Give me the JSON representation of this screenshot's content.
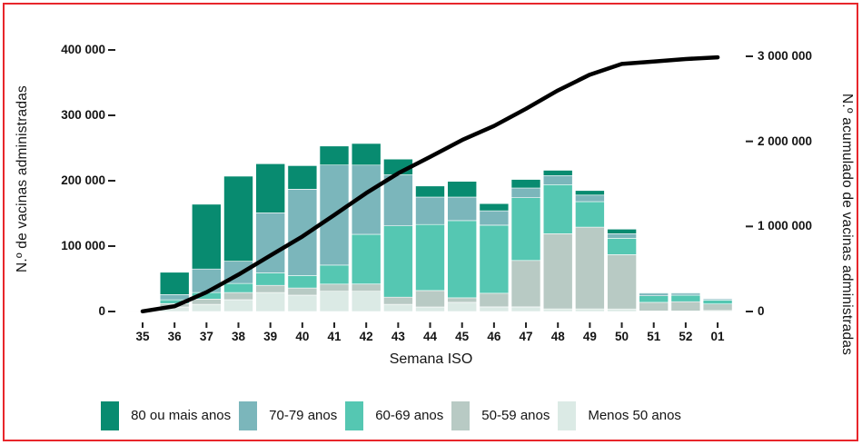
{
  "frame": {
    "border_color": "#e8262b",
    "background": "#ffffff"
  },
  "x_axis": {
    "title": "Semana ISO",
    "labels": [
      "35",
      "36",
      "37",
      "38",
      "39",
      "40",
      "41",
      "42",
      "43",
      "44",
      "45",
      "46",
      "47",
      "48",
      "49",
      "50",
      "51",
      "52",
      "01"
    ]
  },
  "left_axis": {
    "title": "N.º de vacinas administradas",
    "tick_labels": [
      "0",
      "100 000",
      "200 000",
      "300 000",
      "400 000"
    ],
    "tick_values": [
      0,
      100000,
      200000,
      300000,
      400000
    ],
    "range": [
      0,
      400000
    ]
  },
  "right_axis": {
    "title": "N.º acumulado de vacinas administradas",
    "tick_labels": [
      "0",
      "1 000 000",
      "2 000 000",
      "3 000 000"
    ],
    "tick_values": [
      0,
      1000000,
      2000000,
      3000000
    ],
    "range": [
      0,
      3000000
    ]
  },
  "legend": {
    "items": [
      {
        "label": "80 ou mais anos",
        "color": "#088b70"
      },
      {
        "label": "70-79 anos",
        "color": "#7bb6bb"
      },
      {
        "label": "60-69 anos",
        "color": "#55c7b2"
      },
      {
        "label": "50-59 anos",
        "color": "#b8cac4"
      },
      {
        "label": "Menos 50 anos",
        "color": "#dbeae5"
      }
    ]
  },
  "chart_data": {
    "type": "bar",
    "subtype": "stacked-bars-with-cumulative-line",
    "title": "",
    "xlabel": "Semana ISO",
    "ylabel_left": "N.º de vacinas administradas",
    "ylabel_right": "N.º acumulado de vacinas administradas",
    "grid": false,
    "legend_position": "bottom",
    "categories": [
      "35",
      "36",
      "37",
      "38",
      "39",
      "40",
      "41",
      "42",
      "43",
      "44",
      "45",
      "46",
      "47",
      "48",
      "49",
      "50",
      "51",
      "52",
      "01"
    ],
    "series": [
      {
        "name": "80 ou mais anos",
        "color": "#088b70",
        "values": [
          800,
          34000,
          99000,
          130000,
          75000,
          36000,
          29000,
          33000,
          24000,
          17000,
          24000,
          11000,
          13000,
          8000,
          7000,
          7000,
          1000,
          1000,
          500
        ]
      },
      {
        "name": "70-79 anos",
        "color": "#7bb6bb",
        "values": [
          300,
          8000,
          36000,
          34000,
          92000,
          132000,
          153000,
          106000,
          78000,
          42000,
          36000,
          22000,
          15000,
          14000,
          10000,
          7000,
          4000,
          3000,
          2000
        ]
      },
      {
        "name": "60-69 anos",
        "color": "#55c7b2",
        "values": [
          200,
          6000,
          10000,
          14000,
          19000,
          19000,
          29000,
          76000,
          109000,
          101000,
          118000,
          104000,
          96000,
          75000,
          39000,
          25000,
          10000,
          10000,
          6000
        ]
      },
      {
        "name": "50-59 anos",
        "color": "#b8cac4",
        "values": [
          200,
          5000,
          8000,
          11000,
          11000,
          11000,
          11000,
          11000,
          11000,
          25000,
          7000,
          21000,
          71000,
          115000,
          125000,
          83000,
          13000,
          14000,
          10000
        ]
      },
      {
        "name": "Menos 50 anos",
        "color": "#dbeae5",
        "values": [
          100,
          7000,
          11000,
          18000,
          29000,
          25000,
          31000,
          31000,
          11000,
          7000,
          14000,
          7000,
          7000,
          4000,
          4000,
          4000,
          1000,
          1000,
          1500
        ]
      }
    ],
    "line_series": {
      "name": "N.º acumulado de vacinas administradas",
      "color": "#000000",
      "axis": "right",
      "values": [
        2000,
        62000,
        226000,
        433000,
        659000,
        882000,
        1135000,
        1392000,
        1625000,
        1817000,
        2016000,
        2181000,
        2383000,
        2599000,
        2784000,
        2910000,
        2939000,
        2968000,
        2988000
      ]
    },
    "ylim_left": [
      0,
      400000
    ],
    "ylim_right": [
      0,
      3000000
    ]
  }
}
